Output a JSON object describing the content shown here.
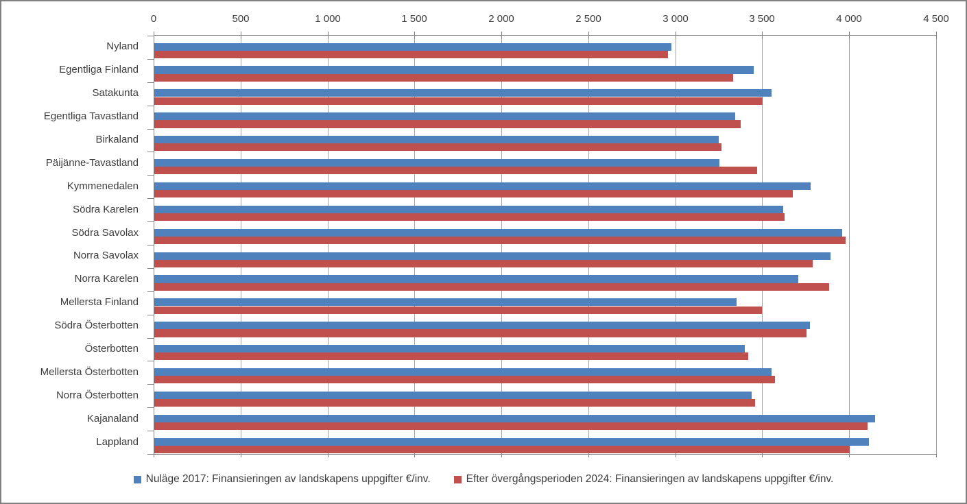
{
  "chart_data": {
    "type": "bar",
    "orientation": "horizontal",
    "title": "",
    "xlabel": "",
    "ylabel": "",
    "xlim": [
      0,
      4500
    ],
    "x_tick_step": 500,
    "x_tick_labels": [
      "0",
      "500",
      "1 000",
      "1 500",
      "2 000",
      "2 500",
      "3 000",
      "3 500",
      "4 000",
      "4 500"
    ],
    "grid": true,
    "legend_position": "bottom",
    "axis_color": "#808080",
    "grid_color": "#a3a3a3",
    "categories": [
      "Nyland",
      "Egentliga Finland",
      "Satakunta",
      "Egentliga Tavastland",
      "Birkaland",
      "Päijänne-Tavastland",
      "Kymmenedalen",
      "Södra Karelen",
      "Södra Savolax",
      "Norra Savolax",
      "Norra Karelen",
      "Mellersta Finland",
      "Södra Österbotten",
      "Österbotten",
      "Mellersta Österbotten",
      "Norra Österbotten",
      "Kajanaland",
      "Lappland"
    ],
    "series": [
      {
        "name": "Nuläge 2017: Finansieringen av landskapens uppgifter €/inv.",
        "color": "#4f81bd",
        "values": [
          2975,
          3445,
          3550,
          3340,
          3245,
          3250,
          3775,
          3615,
          3955,
          3890,
          3705,
          3350,
          3770,
          3395,
          3550,
          3435,
          4145,
          4110
        ]
      },
      {
        "name": "Efter övergångsperioden 2024: Finansieringen av landskapens uppgifter €/inv.",
        "color": "#c0504d",
        "values": [
          2955,
          3330,
          3500,
          3370,
          3260,
          3465,
          3670,
          3625,
          3975,
          3785,
          3880,
          3495,
          3750,
          3415,
          3570,
          3455,
          4100,
          4000
        ]
      }
    ]
  }
}
